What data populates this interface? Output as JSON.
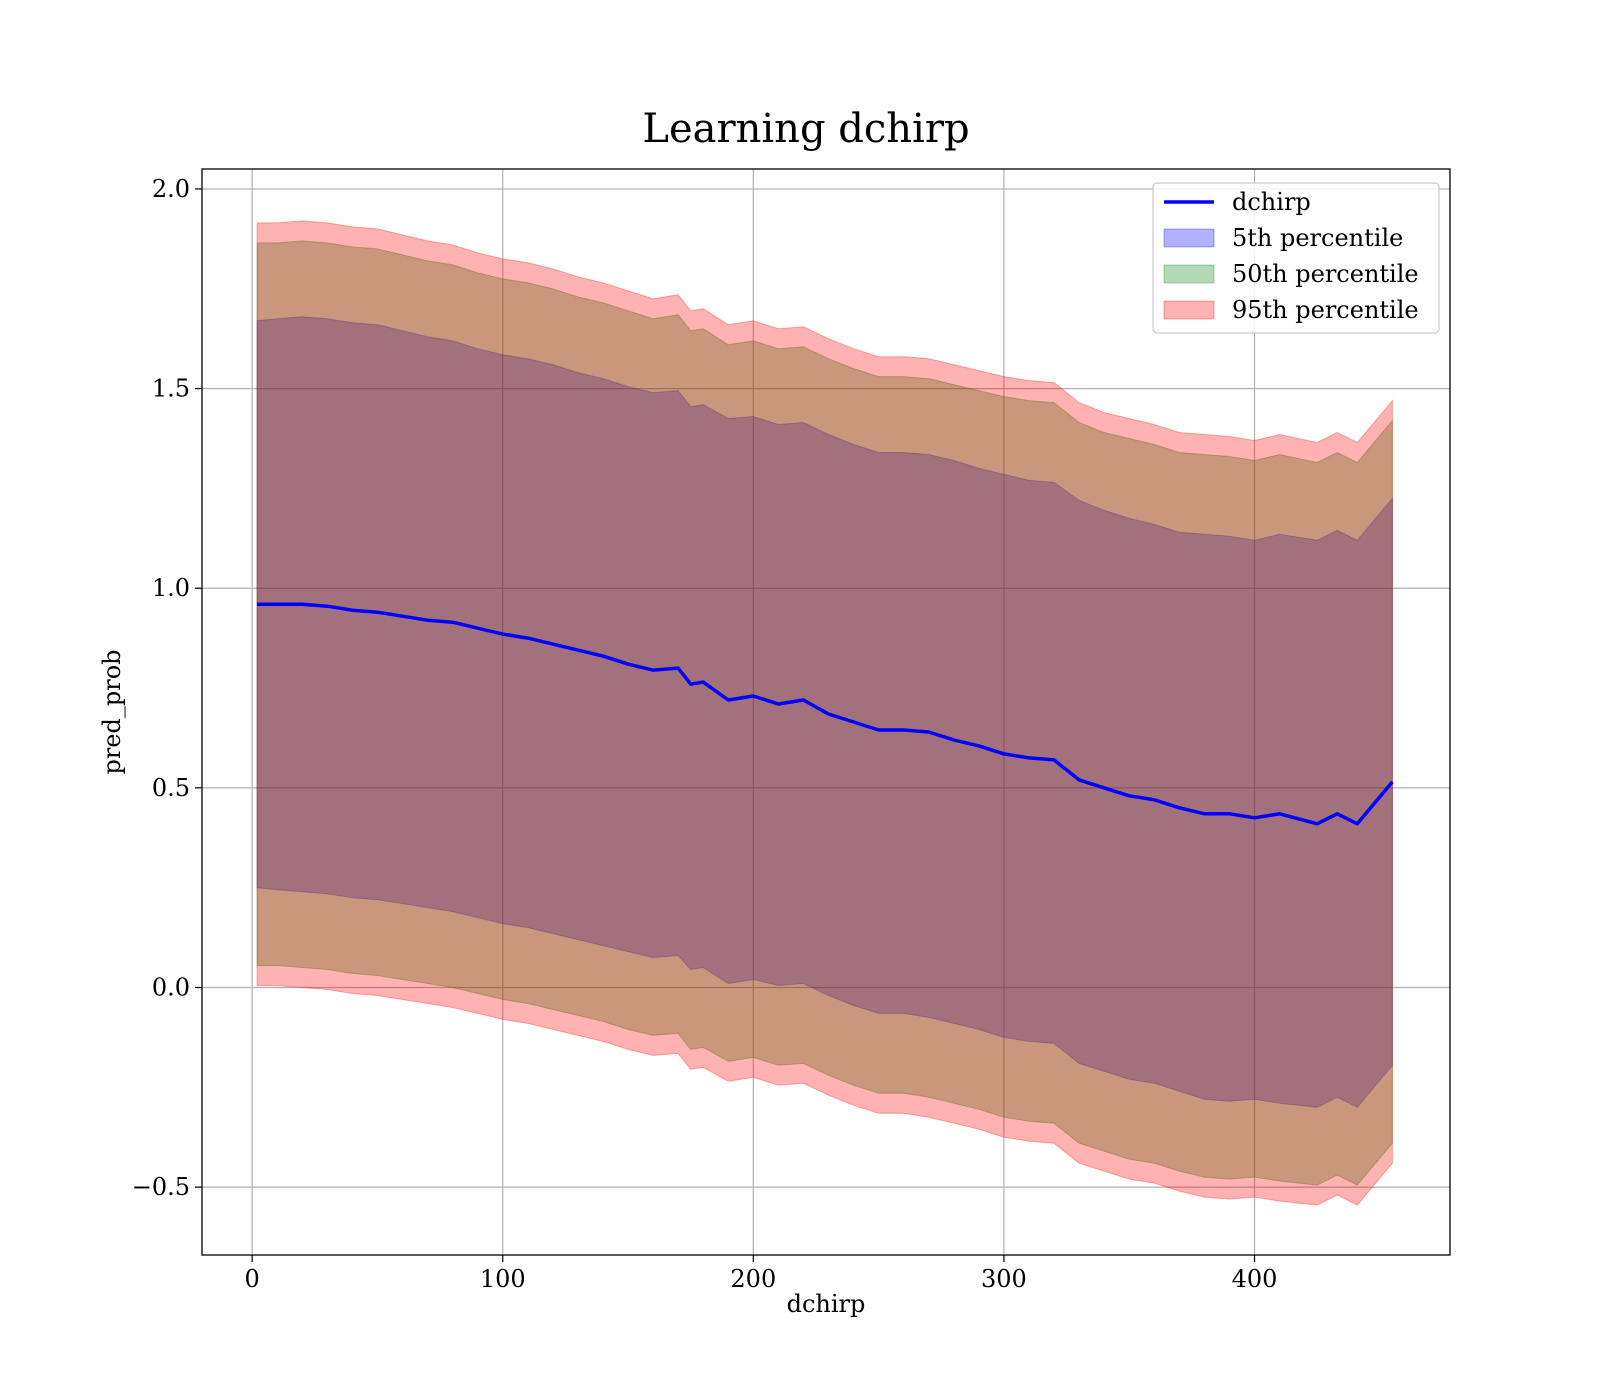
{
  "chart_data": {
    "type": "area",
    "title": "Learning dchirp",
    "xlabel": "dchirp",
    "ylabel": "pred_prob",
    "xlim": [
      -20,
      478
    ],
    "ylim": [
      -0.67,
      2.05
    ],
    "xticks": [
      0,
      100,
      200,
      300,
      400
    ],
    "xtick_labels": [
      "0",
      "100",
      "200",
      "300",
      "400"
    ],
    "yticks": [
      -0.5,
      0.0,
      0.5,
      1.0,
      1.5,
      2.0
    ],
    "ytick_labels": [
      "−0.5",
      "0.0",
      "0.5",
      "1.0",
      "1.5",
      "2.0"
    ],
    "grid": true,
    "legend_position": "top-right",
    "colors": {
      "line": "#0000ff",
      "p5": "#0000ff",
      "p50": "#008000",
      "p95": "#ff0000",
      "grid": "#b0b0b0"
    },
    "x": [
      2,
      10,
      20,
      30,
      40,
      50,
      60,
      70,
      80,
      90,
      100,
      110,
      120,
      130,
      140,
      150,
      160,
      170,
      175,
      180,
      190,
      200,
      210,
      220,
      230,
      240,
      250,
      260,
      270,
      280,
      290,
      300,
      310,
      320,
      330,
      340,
      350,
      360,
      370,
      380,
      390,
      400,
      410,
      425,
      433,
      441,
      455
    ],
    "series": [
      {
        "name": "dchirp",
        "role": "line",
        "values": [
          0.96,
          0.96,
          0.96,
          0.955,
          0.945,
          0.94,
          0.93,
          0.92,
          0.915,
          0.9,
          0.885,
          0.875,
          0.86,
          0.845,
          0.83,
          0.81,
          0.795,
          0.8,
          0.76,
          0.765,
          0.72,
          0.73,
          0.71,
          0.72,
          0.685,
          0.665,
          0.645,
          0.645,
          0.64,
          0.62,
          0.605,
          0.585,
          0.575,
          0.57,
          0.52,
          0.5,
          0.48,
          0.47,
          0.45,
          0.435,
          0.435,
          0.425,
          0.435,
          0.41,
          0.435,
          0.41,
          0.515
        ]
      },
      {
        "name": "5th percentile",
        "role": "band",
        "upper": [
          1.67,
          1.675,
          1.68,
          1.675,
          1.665,
          1.66,
          1.645,
          1.63,
          1.62,
          1.6,
          1.585,
          1.575,
          1.56,
          1.54,
          1.525,
          1.505,
          1.49,
          1.495,
          1.455,
          1.46,
          1.425,
          1.43,
          1.41,
          1.415,
          1.385,
          1.36,
          1.34,
          1.34,
          1.335,
          1.32,
          1.3,
          1.285,
          1.27,
          1.265,
          1.22,
          1.195,
          1.175,
          1.16,
          1.14,
          1.135,
          1.13,
          1.12,
          1.135,
          1.12,
          1.145,
          1.12,
          1.225
        ],
        "lower": [
          0.25,
          0.245,
          0.24,
          0.235,
          0.225,
          0.22,
          0.21,
          0.2,
          0.19,
          0.175,
          0.16,
          0.15,
          0.135,
          0.12,
          0.105,
          0.09,
          0.075,
          0.08,
          0.045,
          0.05,
          0.01,
          0.02,
          0.005,
          0.01,
          -0.02,
          -0.045,
          -0.065,
          -0.065,
          -0.075,
          -0.09,
          -0.105,
          -0.125,
          -0.135,
          -0.14,
          -0.19,
          -0.21,
          -0.23,
          -0.24,
          -0.26,
          -0.28,
          -0.285,
          -0.28,
          -0.29,
          -0.3,
          -0.275,
          -0.3,
          -0.195
        ]
      },
      {
        "name": "50th percentile",
        "role": "band",
        "upper": [
          1.865,
          1.865,
          1.87,
          1.865,
          1.855,
          1.85,
          1.835,
          1.82,
          1.81,
          1.79,
          1.775,
          1.765,
          1.75,
          1.73,
          1.715,
          1.695,
          1.675,
          1.685,
          1.645,
          1.65,
          1.61,
          1.62,
          1.6,
          1.605,
          1.575,
          1.55,
          1.53,
          1.53,
          1.525,
          1.51,
          1.495,
          1.48,
          1.47,
          1.465,
          1.415,
          1.39,
          1.375,
          1.36,
          1.34,
          1.335,
          1.33,
          1.32,
          1.335,
          1.315,
          1.34,
          1.315,
          1.42
        ],
        "lower": [
          0.055,
          0.055,
          0.05,
          0.045,
          0.035,
          0.03,
          0.02,
          0.01,
          0.0,
          -0.015,
          -0.03,
          -0.04,
          -0.055,
          -0.07,
          -0.085,
          -0.105,
          -0.12,
          -0.115,
          -0.155,
          -0.15,
          -0.185,
          -0.175,
          -0.195,
          -0.19,
          -0.22,
          -0.245,
          -0.265,
          -0.265,
          -0.275,
          -0.29,
          -0.305,
          -0.325,
          -0.335,
          -0.34,
          -0.39,
          -0.41,
          -0.43,
          -0.44,
          -0.46,
          -0.475,
          -0.48,
          -0.475,
          -0.485,
          -0.495,
          -0.47,
          -0.495,
          -0.39
        ]
      },
      {
        "name": "95th percentile",
        "role": "band",
        "upper": [
          1.915,
          1.915,
          1.92,
          1.915,
          1.905,
          1.9,
          1.885,
          1.87,
          1.86,
          1.84,
          1.825,
          1.815,
          1.8,
          1.78,
          1.765,
          1.745,
          1.725,
          1.735,
          1.695,
          1.7,
          1.66,
          1.67,
          1.65,
          1.655,
          1.625,
          1.6,
          1.58,
          1.58,
          1.575,
          1.56,
          1.545,
          1.53,
          1.52,
          1.515,
          1.465,
          1.44,
          1.425,
          1.41,
          1.39,
          1.385,
          1.38,
          1.37,
          1.385,
          1.365,
          1.39,
          1.365,
          1.47
        ],
        "lower": [
          0.005,
          0.005,
          0.0,
          -0.005,
          -0.015,
          -0.02,
          -0.03,
          -0.04,
          -0.05,
          -0.065,
          -0.08,
          -0.09,
          -0.105,
          -0.12,
          -0.135,
          -0.155,
          -0.17,
          -0.165,
          -0.205,
          -0.2,
          -0.235,
          -0.225,
          -0.245,
          -0.24,
          -0.27,
          -0.295,
          -0.315,
          -0.315,
          -0.325,
          -0.34,
          -0.355,
          -0.375,
          -0.385,
          -0.39,
          -0.44,
          -0.46,
          -0.48,
          -0.49,
          -0.51,
          -0.525,
          -0.53,
          -0.525,
          -0.535,
          -0.545,
          -0.52,
          -0.545,
          -0.44
        ]
      }
    ]
  }
}
